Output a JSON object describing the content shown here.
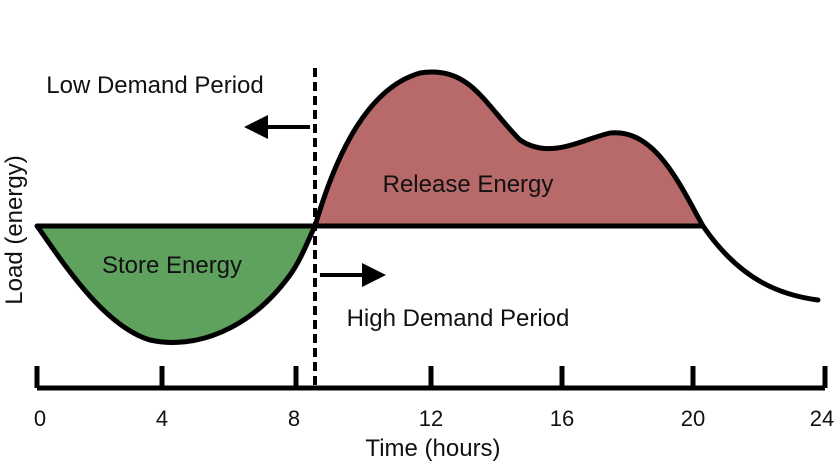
{
  "chart_data": {
    "type": "area",
    "title": "",
    "xlabel": "Time (hours)",
    "ylabel": "Load (energy)",
    "xlim": [
      0,
      24
    ],
    "xticks": [
      0,
      4,
      8,
      12,
      16,
      20,
      24
    ],
    "tick_labels": [
      "0",
      "4",
      "8",
      "12",
      "16",
      "20",
      "24"
    ],
    "baseline_load": 0,
    "divider_time": 8.6,
    "load_curve": {
      "x": [
        0,
        2,
        4,
        6,
        8,
        8.6,
        10,
        12,
        14,
        16,
        18,
        20,
        22,
        24
      ],
      "y": [
        0,
        -0.45,
        -0.72,
        -0.62,
        -0.22,
        0,
        0.85,
        1.0,
        0.58,
        0.48,
        0.55,
        0.05,
        -0.4,
        -0.46
      ]
    },
    "regions": {
      "store": {
        "label": "Store Energy",
        "x_range": [
          0,
          8.6
        ],
        "color": "#5ea25e"
      },
      "release": {
        "label": "Release Energy",
        "x_range": [
          8.6,
          20.3
        ],
        "color": "#b86a6a"
      }
    },
    "annotations": {
      "low_demand": "Low Demand Period",
      "high_demand": "High Demand Period"
    }
  },
  "colors": {
    "store": "#5ea25e",
    "release": "#b86a6a",
    "line": "#000000"
  }
}
